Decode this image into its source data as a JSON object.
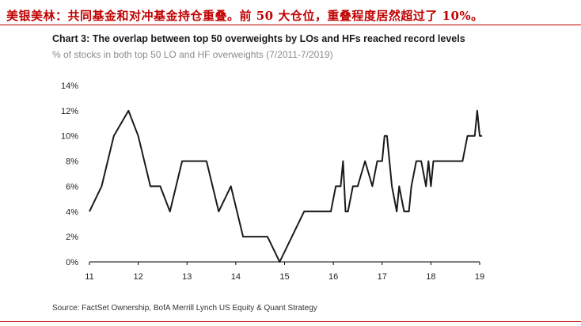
{
  "headline": "美银美林：共同基金和对冲基金持仓重叠。前 50 大仓位，重叠程度居然超过了 10%。",
  "source": "Source: FactSet Ownership, BofA Merrill Lynch US Equity & Quant Strategy",
  "colors": {
    "headline": "#c00000",
    "line": "#1a1a1a",
    "axis": "#000000"
  },
  "chart_data": {
    "type": "line",
    "title": "Chart 3: The overlap between top 50 overweights by LOs and HFs reached record levels",
    "subtitle": "% of stocks in both top 50 LO and HF overweights (7/2011-7/2019)",
    "xlabel": "",
    "ylabel": "",
    "xlim": [
      11,
      19
    ],
    "ylim": [
      0,
      14
    ],
    "x_ticks": [
      "11",
      "12",
      "13",
      "14",
      "15",
      "16",
      "17",
      "18",
      "19"
    ],
    "y_ticks": [
      "0%",
      "2%",
      "4%",
      "6%",
      "8%",
      "10%",
      "12%",
      "14%"
    ],
    "grid": false,
    "legend": "none",
    "series": [
      {
        "x": [
          11.0,
          11.25,
          11.5,
          11.8,
          12.0,
          12.25,
          12.45,
          12.65,
          12.9,
          13.4,
          13.65,
          13.9,
          14.15,
          14.65,
          14.9,
          15.4,
          15.95,
          16.05,
          16.15,
          16.2,
          16.25,
          16.3,
          16.4,
          16.5,
          16.65,
          16.8,
          16.9,
          17.0,
          17.05,
          17.1,
          17.2,
          17.3,
          17.35,
          17.45,
          17.55,
          17.6,
          17.7,
          17.8,
          17.9,
          17.95,
          18.0,
          18.05,
          18.1,
          18.15,
          18.2,
          18.3,
          18.4,
          18.65,
          18.75,
          18.85,
          18.9,
          18.95,
          19.0,
          19.05
        ],
        "y": [
          4,
          6,
          10,
          12,
          10,
          6,
          6,
          4,
          8,
          8,
          4,
          6,
          2,
          2,
          0,
          4,
          4,
          6,
          6,
          8,
          4,
          4,
          6,
          6,
          8,
          6,
          8,
          8,
          10,
          10,
          6,
          4,
          6,
          4,
          4,
          6,
          8,
          8,
          6,
          8,
          6,
          8,
          8,
          8,
          8,
          8,
          8,
          8,
          10,
          10,
          10,
          12,
          10,
          10
        ]
      }
    ]
  }
}
